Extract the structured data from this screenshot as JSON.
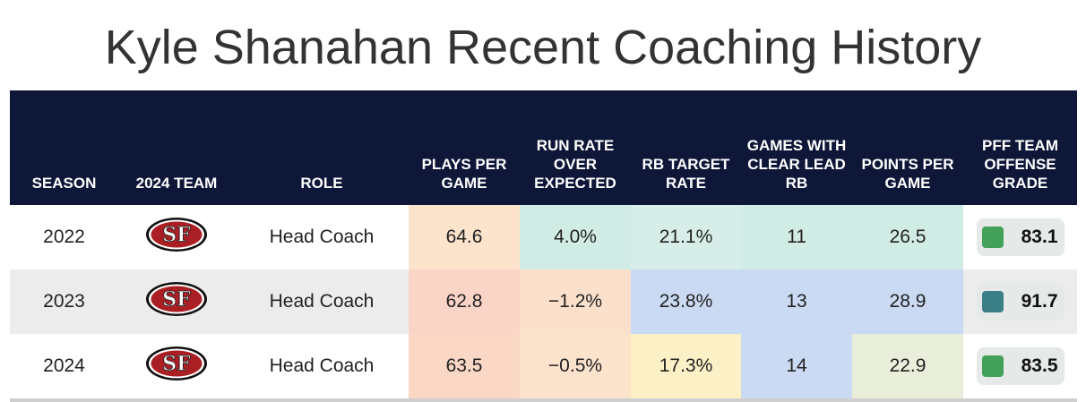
{
  "title": "Kyle Shanahan Recent Coaching History",
  "headers": {
    "season": "SEASON",
    "team": "2024 TEAM",
    "role": "ROLE",
    "plays": "PLAYS PER GAME",
    "run_rate": "RUN RATE OVER EXPECTED",
    "rb_target": "RB TARGET RATE",
    "games_lead": "GAMES WITH CLEAR LEAD RB",
    "points": "POINTS PER GAME",
    "pff": "PFF TEAM OFFENSE GRADE"
  },
  "logo_text": "SF",
  "rows": [
    {
      "season": "2022",
      "team_icon": "49ers-logo",
      "role": "Head Coach",
      "plays": "64.6",
      "run_rate": "4.0%",
      "rb_target": "21.1%",
      "games_lead": "11",
      "points": "26.5",
      "pff": "83.1",
      "colors": {
        "plays": "#fbe3cc",
        "run_rate": "#d1ebe5",
        "rb_target": "#d6ede8",
        "games_lead": "#d1ebe5",
        "points": "#d1ebe5",
        "pff_dot": "#43a15a"
      }
    },
    {
      "season": "2023",
      "team_icon": "49ers-logo",
      "role": "Head Coach",
      "plays": "62.8",
      "run_rate": "−1.2%",
      "rb_target": "23.8%",
      "games_lead": "13",
      "points": "28.9",
      "pff": "91.7",
      "colors": {
        "plays": "#fad4c6",
        "run_rate": "#fbe1cc",
        "rb_target": "#c9daf2",
        "games_lead": "#c9daf2",
        "points": "#c9daf2",
        "pff_dot": "#3a7f86"
      }
    },
    {
      "season": "2024",
      "team_icon": "49ers-logo",
      "role": "Head Coach",
      "plays": "63.5",
      "run_rate": "−0.5%",
      "rb_target": "17.3%",
      "games_lead": "14",
      "points": "22.9",
      "pff": "83.5",
      "colors": {
        "plays": "#fbd8c6",
        "run_rate": "#fbe3cc",
        "rb_target": "#fcf1c6",
        "games_lead": "#c9daf2",
        "points": "#e9eedb",
        "pff_dot": "#43a15a"
      }
    }
  ]
}
